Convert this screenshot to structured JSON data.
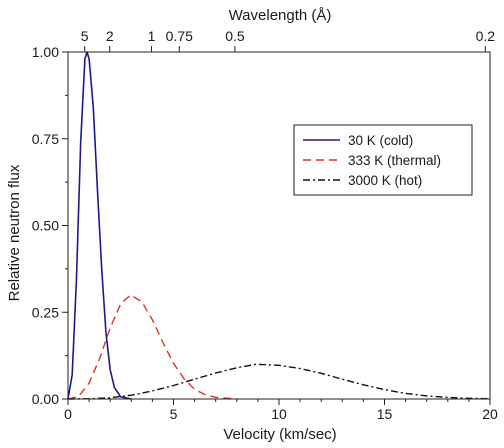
{
  "chart_data": {
    "type": "line",
    "xlabel": "Velocity (km/sec)",
    "ylabel": "Relative neutron flux",
    "top_axis_label": "Wavelength (Å)",
    "xlim": [
      0,
      20
    ],
    "ylim": [
      0,
      1.0
    ],
    "x_ticks": [
      0,
      5,
      10,
      15,
      20
    ],
    "y_ticks": [
      0.0,
      0.25,
      0.5,
      0.75,
      1.0
    ],
    "x_tick_labels": [
      "0",
      "5",
      "10",
      "15",
      "20"
    ],
    "y_tick_labels": [
      "0.00",
      "0.25",
      "0.50",
      "0.75",
      "1.00"
    ],
    "top_ticks": [
      {
        "label": "5",
        "wavelength": 5
      },
      {
        "label": "2",
        "wavelength": 2
      },
      {
        "label": "1",
        "wavelength": 1
      },
      {
        "label": "0.75",
        "wavelength": 0.75
      },
      {
        "label": "0.5",
        "wavelength": 0.5
      },
      {
        "label": "0.2",
        "wavelength": 0.2
      }
    ],
    "legend_position": "right",
    "grid": false,
    "series": [
      {
        "name": "30 K (cold)",
        "style": "solid",
        "color": "#1f1a8c",
        "x": [
          0,
          0.2,
          0.4,
          0.6,
          0.8,
          0.9,
          1.0,
          1.2,
          1.4,
          1.6,
          1.8,
          2.0,
          2.2,
          2.5,
          3.0
        ],
        "y": [
          0,
          0.07,
          0.34,
          0.74,
          0.98,
          1.0,
          0.98,
          0.84,
          0.6,
          0.37,
          0.19,
          0.084,
          0.033,
          0.006,
          0
        ]
      },
      {
        "name": "333 K (thermal)",
        "style": "dashed",
        "color": "#e03020",
        "x": [
          0,
          0.5,
          1.0,
          1.5,
          2.0,
          2.5,
          2.97,
          3.5,
          4.0,
          4.5,
          5.0,
          5.5,
          6.0,
          6.5,
          7.0,
          8.0
        ],
        "y": [
          0,
          0.007,
          0.046,
          0.117,
          0.205,
          0.275,
          0.3,
          0.28,
          0.228,
          0.163,
          0.103,
          0.058,
          0.028,
          0.012,
          0.005,
          0
        ]
      },
      {
        "name": "3000 K (hot)",
        "style": "dashdot",
        "color": "#111111",
        "x": [
          0,
          1,
          2,
          3,
          4,
          5,
          6,
          7,
          8,
          8.9,
          10,
          11,
          12,
          13,
          14,
          15,
          16,
          17,
          18,
          19,
          20
        ],
        "y": [
          0,
          0.0005,
          0.0035,
          0.011,
          0.023,
          0.039,
          0.057,
          0.075,
          0.09,
          0.1,
          0.097,
          0.088,
          0.074,
          0.057,
          0.041,
          0.027,
          0.016,
          0.009,
          0.0046,
          0.0021,
          0.0009
        ]
      }
    ]
  }
}
